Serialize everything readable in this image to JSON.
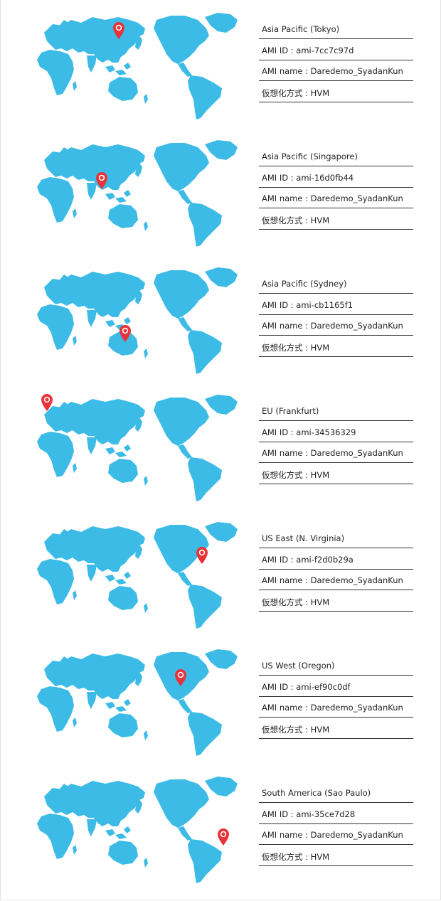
{
  "colors": {
    "land": "#3bbbe6",
    "pin": "#e8333a",
    "rule": "#333333",
    "text": "#222222"
  },
  "regions": [
    {
      "title": "Asia Pacific (Tokyo)",
      "ami_id": "AMI ID : ami-7cc7c97d",
      "ami_name": "AMI name : Daredemo_SyadanKun",
      "virtualization": "仮想化方式 : HVM",
      "pin": "japan"
    },
    {
      "title": "Asia Pacific (Singapore)",
      "ami_id": "AMI ID : ami-16d0fb44",
      "ami_name": "AMI name : Daredemo_SyadanKun",
      "virtualization": "仮想化方式 : HVM",
      "pin": "singapore"
    },
    {
      "title": "Asia Pacific (Sydney)",
      "ami_id": "AMI ID : ami-cb1165f1",
      "ami_name": "AMI name : Daredemo_SyadanKun",
      "virtualization": "仮想化方式 : HVM",
      "pin": "sydney"
    },
    {
      "title": "EU (Frankfurt)",
      "ami_id": "AMI ID : ami-34536329",
      "ami_name": "AMI name : Daredemo_SyadanKun",
      "virtualization": "仮想化方式 : HVM",
      "pin": "frankfurt"
    },
    {
      "title": "US East (N. Virginia)",
      "ami_id": "AMI ID : ami-f2d0b29a",
      "ami_name": "AMI name : Daredemo_SyadanKun",
      "virtualization": "仮想化方式 : HVM",
      "pin": "virginia"
    },
    {
      "title": "US West (Oregon)",
      "ami_id": "AMI ID : ami-ef90c0df",
      "ami_name": "AMI name : Daredemo_SyadanKun",
      "virtualization": "仮想化方式 : HVM",
      "pin": "oregon"
    },
    {
      "title": "South America (Sao Paulo)",
      "ami_id": "AMI ID : ami-35ce7d28",
      "ami_name": "AMI name : Daredemo_SyadanKun",
      "virtualization": "仮想化方式 : HVM",
      "pin": "saopaulo"
    }
  ]
}
